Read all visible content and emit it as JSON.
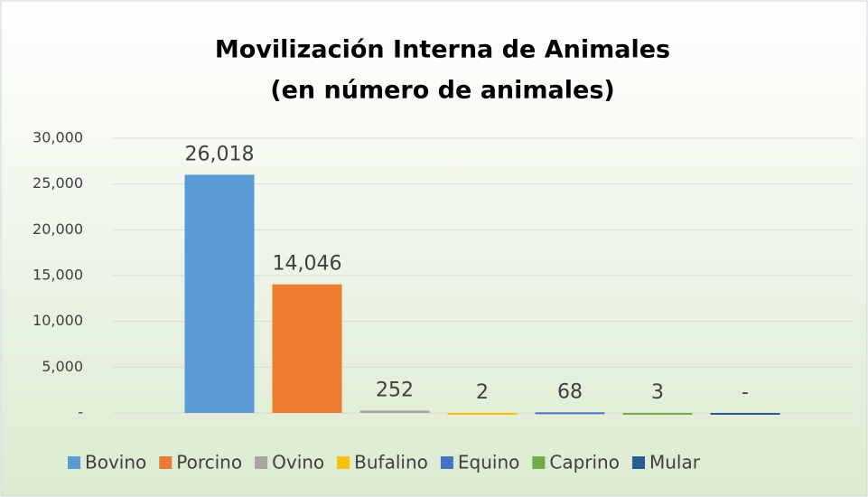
{
  "chart_data": {
    "type": "bar",
    "title": "Movilización Interna de Animales",
    "subtitle": "(en número de animales)",
    "categories": [
      null
    ],
    "series": [
      {
        "name": "Bovino",
        "color": "#5b9bd5",
        "values": [
          26018
        ],
        "value_labels": [
          "26,018"
        ]
      },
      {
        "name": "Porcino",
        "color": "#ed7d31",
        "values": [
          14046
        ],
        "value_labels": [
          "14,046"
        ]
      },
      {
        "name": "Ovino",
        "color": "#a5a5a5",
        "values": [
          252
        ],
        "value_labels": [
          "252"
        ]
      },
      {
        "name": "Bufalino",
        "color": "#ffc000",
        "values": [
          2
        ],
        "value_labels": [
          "2"
        ]
      },
      {
        "name": "Equino",
        "color": "#4472c4",
        "values": [
          68
        ],
        "value_labels": [
          "68"
        ]
      },
      {
        "name": "Caprino",
        "color": "#70ad47",
        "values": [
          3
        ],
        "value_labels": [
          "3"
        ]
      },
      {
        "name": "Mular",
        "color": "#255e91",
        "values": [
          0
        ],
        "value_labels": [
          "-"
        ]
      }
    ],
    "ylim": [
      0,
      30000
    ],
    "yticks": [
      {
        "value": 0,
        "label": "-"
      },
      {
        "value": 5000,
        "label": "5,000"
      },
      {
        "value": 10000,
        "label": "10,000"
      },
      {
        "value": 15000,
        "label": "15,000"
      },
      {
        "value": 20000,
        "label": "20,000"
      },
      {
        "value": 25000,
        "label": "25,000"
      },
      {
        "value": 30000,
        "label": "30,000"
      }
    ],
    "grid": true
  }
}
